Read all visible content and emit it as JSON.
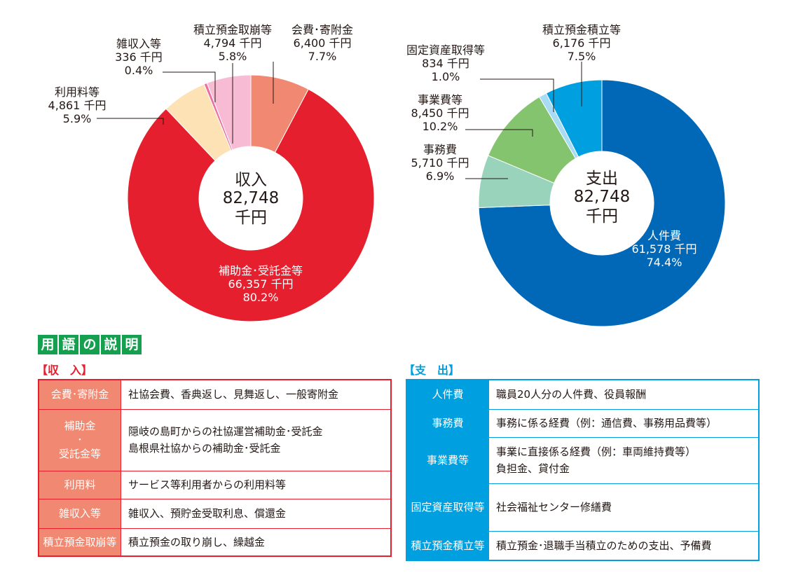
{
  "chart_data": [
    {
      "type": "pie",
      "center_label": [
        "収入",
        "82,748",
        "千円"
      ],
      "unit": "千円",
      "slices": [
        {
          "name": "会費･寄附金",
          "value": 6400,
          "percent": "7.7%",
          "value_text": "6,400 千円",
          "color": "#f08872"
        },
        {
          "name": "補助金･受託金等",
          "value": 66357,
          "percent": "80.2%",
          "value_text": "66,357 千円",
          "color": "#e61f2e"
        },
        {
          "name": "利用料等",
          "value": 4861,
          "percent": "5.9%",
          "value_text": "4,861 千円",
          "color": "#fde2b6"
        },
        {
          "name": "雑収入等",
          "value": 336,
          "percent": "0.4%",
          "value_text": "336 千円",
          "color": "#ea6fa3"
        },
        {
          "name": "積立預金取崩等",
          "value": 4794,
          "percent": "5.8%",
          "value_text": "4,794 千円",
          "color": "#f7bcd4"
        }
      ]
    },
    {
      "type": "pie",
      "center_label": [
        "支出",
        "82,748",
        "千円"
      ],
      "unit": "千円",
      "slices": [
        {
          "name": "人件費",
          "value": 61578,
          "percent": "74.4%",
          "value_text": "61,578 千円",
          "color": "#0068b7"
        },
        {
          "name": "事務費",
          "value": 5710,
          "percent": "6.9%",
          "value_text": "5,710 千円",
          "color": "#99d3bc"
        },
        {
          "name": "事業費等",
          "value": 8450,
          "percent": "10.2%",
          "value_text": "8,450 千円",
          "color": "#84c46e"
        },
        {
          "name": "固定資産取得等",
          "value": 834,
          "percent": "1.0%",
          "value_text": "834 千円",
          "color": "#a8dcf5"
        },
        {
          "name": "積立預金積立等",
          "value": 6176,
          "percent": "7.5%",
          "value_text": "6,176 千円",
          "color": "#00a0e0"
        }
      ]
    }
  ],
  "glossary": {
    "heading": [
      "用",
      "語",
      "の",
      "説",
      "明"
    ],
    "income": {
      "title": "【収　入】",
      "rows": [
        {
          "term": [
            "会費･寄附金"
          ],
          "desc": [
            "社協会費、香典返し、見舞返し、一般寄附金"
          ]
        },
        {
          "term": [
            "補助金",
            "･",
            "受託金等"
          ],
          "desc": [
            "隠岐の島町からの社協運営補助金･受託金",
            "島根県社協からの補助金･受託金"
          ]
        },
        {
          "term": [
            "利用料"
          ],
          "desc": [
            "サービス等利用者からの利用料等"
          ]
        },
        {
          "term": [
            "雑収入等"
          ],
          "desc": [
            "雑収入、預貯金受取利息、償還金"
          ]
        },
        {
          "term": [
            "積立預金取崩等"
          ],
          "desc": [
            "積立預金の取り崩し、繰越金"
          ]
        }
      ]
    },
    "expense": {
      "title": "【支　出】",
      "rows": [
        {
          "term": [
            "人件費"
          ],
          "desc": [
            "職員20人分の人件費、役員報酬"
          ]
        },
        {
          "term": [
            "事務費"
          ],
          "desc": [
            "事務に係る経費（例：通信費、事務用品費等）"
          ]
        },
        {
          "term": [
            "事業費等"
          ],
          "desc": [
            "事業に直接係る経費（例：車両維持費等）",
            "負担金、貸付金"
          ]
        },
        {
          "term": [
            "固定資産取得等"
          ],
          "desc": [
            "社会福祉センター修繕費"
          ]
        },
        {
          "term": [
            "積立預金積立等"
          ],
          "desc": [
            "積立預金･退職手当積立のための支出、予備費"
          ]
        }
      ]
    }
  }
}
